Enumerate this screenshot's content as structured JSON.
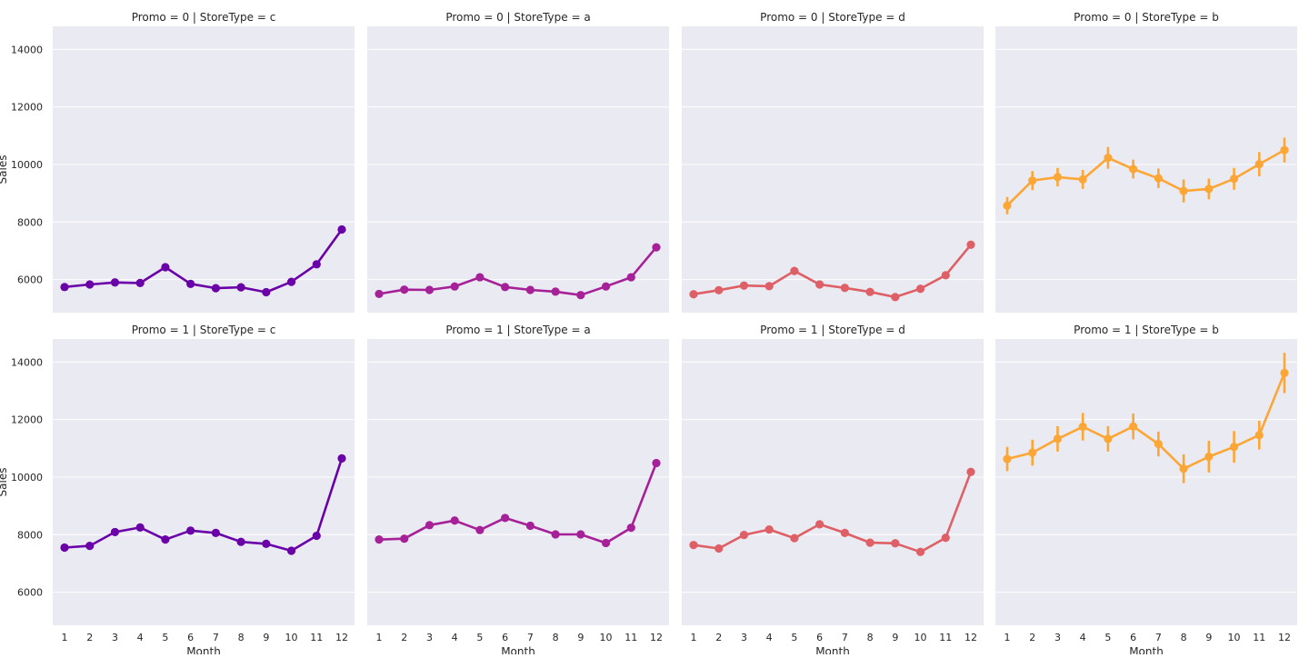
{
  "chart_data": {
    "type": "line",
    "kind": "facet-grid point plot with error bars",
    "x_label": "Month",
    "y_label": "Sales",
    "x_categories": [
      "1",
      "2",
      "3",
      "4",
      "5",
      "6",
      "7",
      "8",
      "9",
      "10",
      "11",
      "12"
    ],
    "ylim": [
      4850,
      14800
    ],
    "y_ticks": [
      6000,
      8000,
      10000,
      12000,
      14000
    ],
    "y_tick_labels": [
      "6000",
      "8000",
      "10000",
      "12000",
      "14000"
    ],
    "grid": true,
    "panels": [
      {
        "title": "Promo = 0 | StoreType = c",
        "color": "#6a00a8",
        "values": [
          5740,
          5830,
          5900,
          5880,
          6430,
          5850,
          5700,
          5730,
          5560,
          5920,
          6530,
          7740
        ],
        "errors": [
          40,
          40,
          40,
          40,
          50,
          40,
          40,
          40,
          40,
          40,
          50,
          100
        ]
      },
      {
        "title": "Promo = 0 | StoreType = a",
        "color": "#a62098",
        "values": [
          5500,
          5650,
          5640,
          5760,
          6080,
          5740,
          5640,
          5580,
          5460,
          5760,
          6080,
          7120
        ],
        "errors": [
          30,
          30,
          30,
          30,
          30,
          30,
          30,
          30,
          30,
          30,
          30,
          40
        ]
      },
      {
        "title": "Promo = 0 | StoreType = d",
        "color": "#de5f65",
        "values": [
          5490,
          5630,
          5790,
          5770,
          6300,
          5830,
          5710,
          5570,
          5390,
          5680,
          6150,
          7210
        ],
        "errors": [
          30,
          30,
          30,
          30,
          40,
          30,
          30,
          30,
          30,
          30,
          30,
          50
        ]
      },
      {
        "title": "Promo = 0 | StoreType = b",
        "color": "#fca636",
        "values": [
          8570,
          9440,
          9560,
          9480,
          10230,
          9840,
          9520,
          9080,
          9150,
          9500,
          10010,
          10500
        ],
        "errors": [
          300,
          330,
          320,
          330,
          380,
          330,
          340,
          400,
          360,
          380,
          420,
          430
        ]
      },
      {
        "title": "Promo = 1 | StoreType = c",
        "color": "#6a00a8",
        "values": [
          7550,
          7610,
          8090,
          8250,
          7830,
          8140,
          8060,
          7750,
          7680,
          7440,
          7960,
          10650
        ],
        "errors": [
          60,
          60,
          60,
          60,
          60,
          60,
          60,
          60,
          60,
          60,
          60,
          120
        ]
      },
      {
        "title": "Promo = 1 | StoreType = a",
        "color": "#a62098",
        "values": [
          7830,
          7860,
          8330,
          8490,
          8160,
          8580,
          8310,
          8010,
          8010,
          7710,
          8240,
          10490
        ],
        "errors": [
          40,
          40,
          40,
          40,
          40,
          40,
          40,
          40,
          40,
          40,
          40,
          60
        ]
      },
      {
        "title": "Promo = 1 | StoreType = d",
        "color": "#de5f65",
        "values": [
          7640,
          7520,
          7990,
          8180,
          7880,
          8360,
          8060,
          7720,
          7700,
          7400,
          7890,
          10180
        ],
        "errors": [
          40,
          40,
          40,
          40,
          40,
          40,
          40,
          40,
          40,
          40,
          40,
          60
        ]
      },
      {
        "title": "Promo = 1 | StoreType = b",
        "color": "#fca636",
        "values": [
          10630,
          10850,
          11330,
          11750,
          11330,
          11760,
          11150,
          10290,
          10710,
          11050,
          11460,
          13620
        ],
        "errors": [
          420,
          450,
          440,
          480,
          440,
          450,
          430,
          500,
          550,
          550,
          500,
          700
        ]
      }
    ]
  }
}
